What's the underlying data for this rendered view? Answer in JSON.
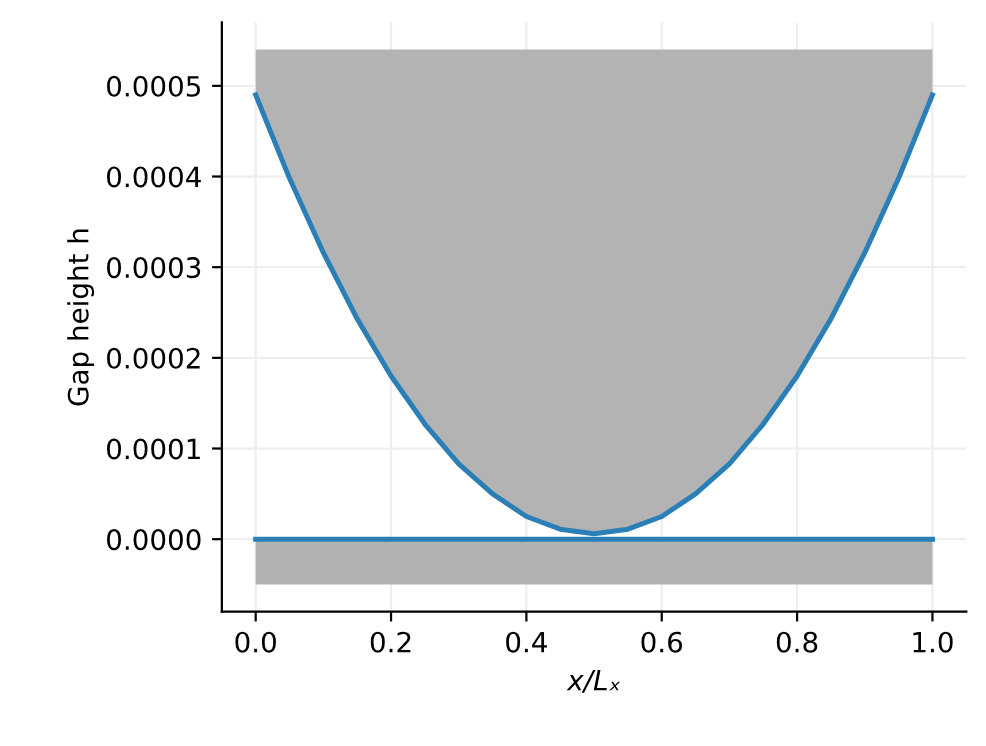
{
  "chart_data": {
    "type": "line",
    "xlabel": "x/Lₓ",
    "ylabel": "Gap height h",
    "x": [
      0,
      0.05,
      0.1,
      0.15,
      0.2,
      0.25,
      0.3,
      0.35,
      0.4,
      0.45,
      0.5,
      0.55,
      0.6,
      0.65,
      0.7,
      0.75,
      0.8,
      0.85,
      0.9,
      0.95,
      1
    ],
    "series": [
      {
        "color": "#2a7fb6",
        "values": [
          0.00049,
          0.000398,
          0.000316,
          0.000243,
          0.00018,
          0.000127,
          8.3e-05,
          5e-05,
          2.5e-05,
          1.1e-05,
          6e-06,
          1.1e-05,
          2.5e-05,
          5e-05,
          8.3e-05,
          0.000127,
          0.00018,
          0.000243,
          0.000316,
          0.000398,
          0.00049
        ],
        "lower": [
          0.00049,
          0.000398,
          0.000316,
          0.000243,
          0.00018,
          0.000127,
          8.3e-05,
          5e-05,
          2.5e-05,
          1.1e-05,
          6e-06,
          1.1e-05,
          2.5e-05,
          5e-05,
          8.3e-05,
          0.000127,
          0.00018,
          0.000243,
          0.000316,
          0.000398,
          0.00049
        ],
        "upper": [
          0.00054,
          0.00054,
          0.00054,
          0.00054,
          0.00054,
          0.00054,
          0.00054,
          0.00054,
          0.00054,
          0.00054,
          0.00054,
          0.00054,
          0.00054,
          0.00054,
          0.00054,
          0.00054,
          0.00054,
          0.00054,
          0.00054,
          0.00054,
          0.00054
        ]
      },
      {
        "color": "#2a7fb6",
        "x": [
          0,
          1
        ],
        "values": [
          0,
          0
        ],
        "lower": [
          -5e-05,
          -5e-05
        ],
        "upper": [
          0,
          0
        ]
      }
    ],
    "xlim": [
      -0.05,
      1.05
    ],
    "ylim": [
      -8e-05,
      0.00057
    ],
    "xticks": [
      {
        "value": 0,
        "label": "0.0"
      },
      {
        "value": 0.2,
        "label": "0.2"
      },
      {
        "value": 0.4,
        "label": "0.4"
      },
      {
        "value": 0.6,
        "label": "0.6"
      },
      {
        "value": 0.8,
        "label": "0.8"
      },
      {
        "value": 1,
        "label": "1.0"
      }
    ],
    "yticks": [
      {
        "value": 0,
        "label": "0.0000"
      },
      {
        "value": 0.0001,
        "label": "0.0001"
      },
      {
        "value": 0.0002,
        "label": "0.0002"
      },
      {
        "value": 0.0003,
        "label": "0.0003"
      },
      {
        "value": 0.0004,
        "label": "0.0004"
      },
      {
        "value": 0.0005,
        "label": "0.0005"
      }
    ],
    "grid": true,
    "line_style": "solid",
    "marker": "none"
  }
}
